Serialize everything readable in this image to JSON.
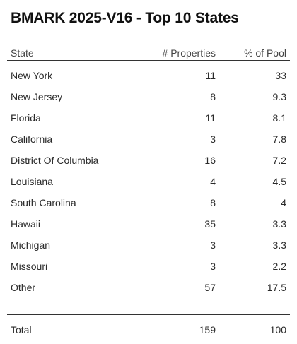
{
  "title": "BMARK 2025-V16 - Top 10 States",
  "columns": {
    "state": "State",
    "properties": "# Properties",
    "pct": "% of Pool"
  },
  "rows": [
    {
      "state": "New York",
      "properties": "11",
      "pct": "33"
    },
    {
      "state": "New Jersey",
      "properties": "8",
      "pct": "9.3"
    },
    {
      "state": "Florida",
      "properties": "11",
      "pct": "8.1"
    },
    {
      "state": "California",
      "properties": "3",
      "pct": "7.8"
    },
    {
      "state": "District Of Columbia",
      "properties": "16",
      "pct": "7.2"
    },
    {
      "state": "Louisiana",
      "properties": "4",
      "pct": "4.5"
    },
    {
      "state": "South Carolina",
      "properties": "8",
      "pct": "4"
    },
    {
      "state": "Hawaii",
      "properties": "35",
      "pct": "3.3"
    },
    {
      "state": "Michigan",
      "properties": "3",
      "pct": "3.3"
    },
    {
      "state": "Missouri",
      "properties": "3",
      "pct": "2.2"
    },
    {
      "state": "Other",
      "properties": "57",
      "pct": "17.5"
    }
  ],
  "total": {
    "label": "Total",
    "properties": "159",
    "pct": "100"
  }
}
